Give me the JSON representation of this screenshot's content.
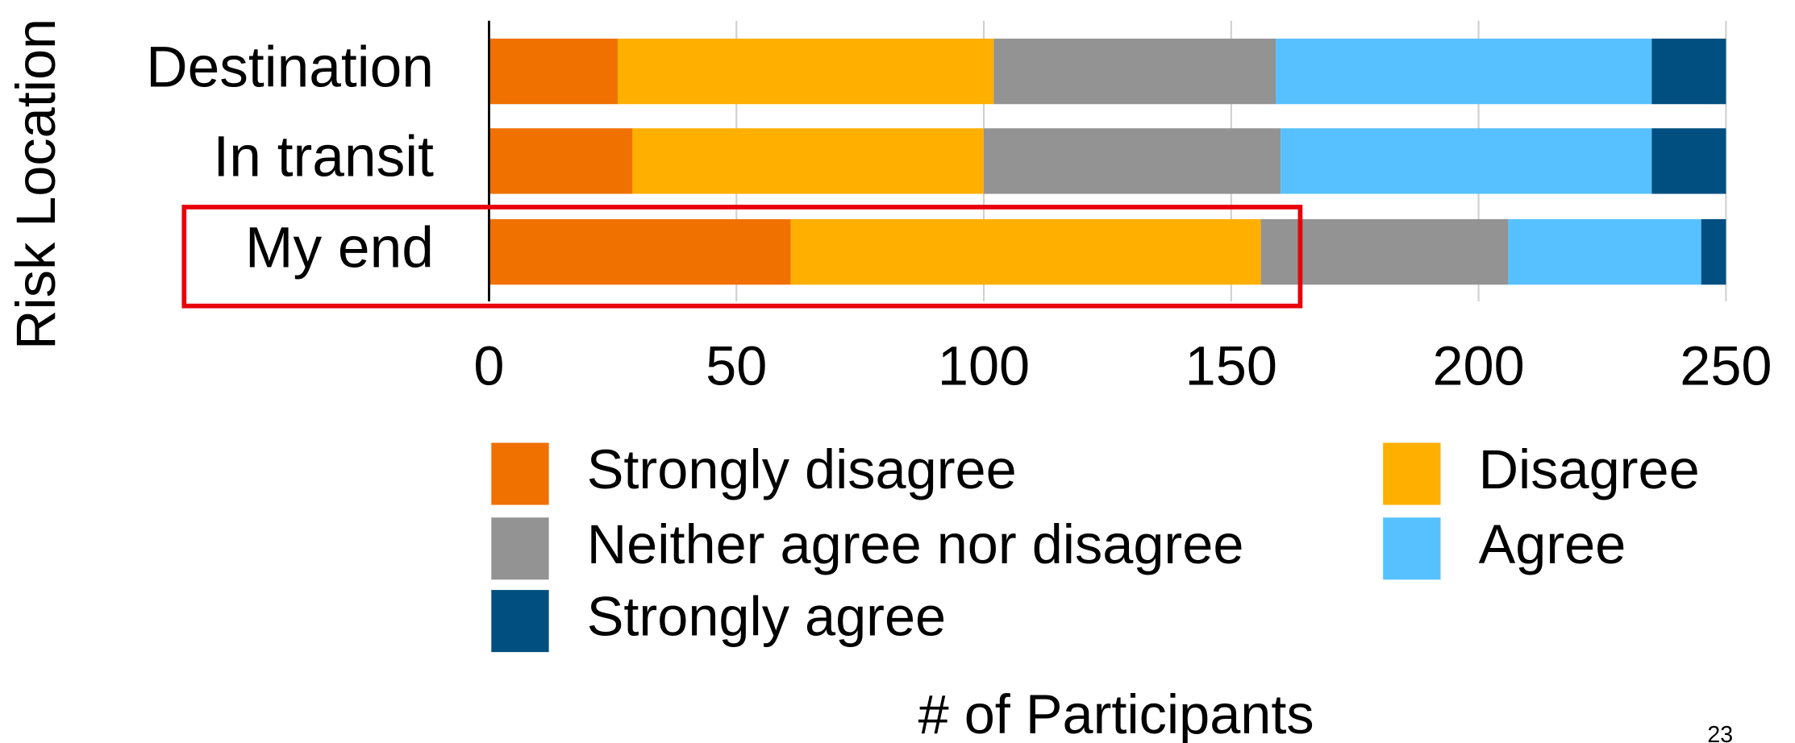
{
  "chart_data": {
    "type": "stacked_barh",
    "xlabel": "# of Participants",
    "ylabel": "Risk Location",
    "categories": [
      "Destination",
      "In transit",
      "My end"
    ],
    "series": [
      {
        "name": "Strongly disagree",
        "color": "#f07100",
        "values": [
          26,
          29,
          61
        ]
      },
      {
        "name": "Disagree",
        "color": "#ffaf00",
        "values": [
          76,
          71,
          95
        ]
      },
      {
        "name": "Neither agree nor disagree",
        "color": "#939393",
        "values": [
          57,
          60,
          50
        ]
      },
      {
        "name": "Agree",
        "color": "#57c1ff",
        "values": [
          76,
          75,
          39
        ]
      },
      {
        "name": "Strongly agree",
        "color": "#004f80",
        "values": [
          15,
          15,
          5
        ]
      }
    ],
    "xlim": [
      0,
      250
    ],
    "xticks": [
      0,
      50,
      100,
      150,
      200,
      250
    ],
    "grid": true,
    "legend": "bottom"
  },
  "page_number": "23"
}
